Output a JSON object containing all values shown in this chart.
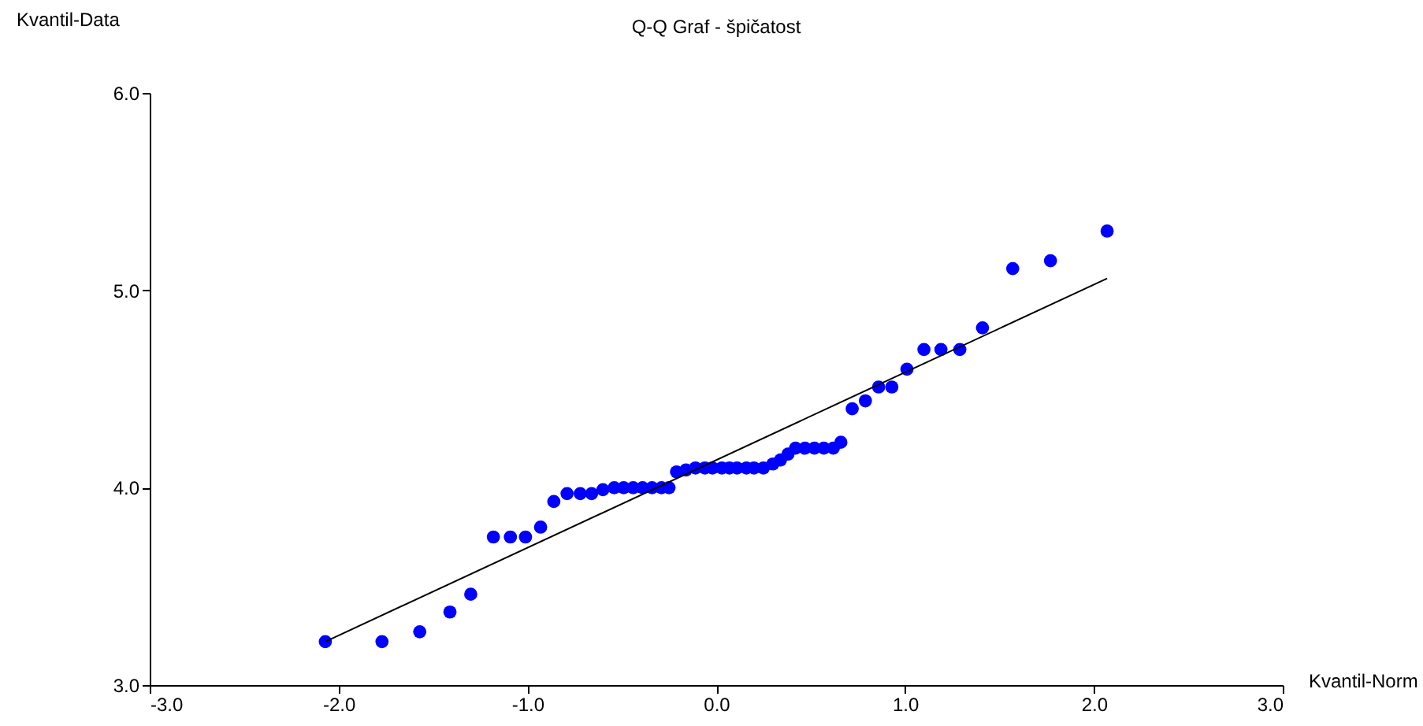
{
  "chart_data": {
    "type": "scatter",
    "title": "Q-Q Graf - špičatost",
    "xlabel": "Kvantil-Norm",
    "ylabel": "Kvantil-Data",
    "xlim": [
      -3,
      3
    ],
    "ylim": [
      3,
      6
    ],
    "xticks": [
      {
        "value": -3,
        "label": "-3.0"
      },
      {
        "value": -2,
        "label": "-2.0"
      },
      {
        "value": -1,
        "label": "-1.0"
      },
      {
        "value": 0,
        "label": "0.0"
      },
      {
        "value": 1,
        "label": "1.0"
      },
      {
        "value": 2,
        "label": "2.0"
      },
      {
        "value": 3,
        "label": "3.0"
      }
    ],
    "yticks": [
      {
        "value": 3,
        "label": "3.0"
      },
      {
        "value": 4,
        "label": "4.0"
      },
      {
        "value": 5,
        "label": "5.0"
      },
      {
        "value": 6,
        "label": "6.0"
      }
    ],
    "grid": false,
    "series": [
      {
        "marker": "circle",
        "color": "#0000ff",
        "x": [
          -2.07,
          -1.77,
          -1.57,
          -1.41,
          -1.3,
          -1.18,
          -1.09,
          -1.01,
          -0.93,
          -0.86,
          -0.79,
          -0.72,
          -0.66,
          -0.6,
          -0.54,
          -0.49,
          -0.44,
          -0.39,
          -0.34,
          -0.29,
          -0.25,
          -0.21,
          -0.16,
          -0.11,
          -0.06,
          -0.02,
          0.03,
          0.07,
          0.11,
          0.16,
          0.2,
          0.25,
          0.3,
          0.34,
          0.38,
          0.42,
          0.47,
          0.52,
          0.57,
          0.62,
          0.66,
          0.72,
          0.79,
          0.86,
          0.93,
          1.01,
          1.1,
          1.19,
          1.29,
          1.41,
          1.57,
          1.77,
          2.07
        ],
        "values": [
          3.22,
          3.22,
          3.27,
          3.37,
          3.46,
          3.75,
          3.75,
          3.75,
          3.8,
          3.93,
          3.97,
          3.97,
          3.97,
          3.99,
          4.0,
          4.0,
          4.0,
          4.0,
          4.0,
          4.0,
          4.0,
          4.08,
          4.09,
          4.1,
          4.1,
          4.1,
          4.1,
          4.1,
          4.1,
          4.1,
          4.1,
          4.1,
          4.12,
          4.14,
          4.17,
          4.2,
          4.2,
          4.2,
          4.2,
          4.2,
          4.23,
          4.4,
          4.44,
          4.51,
          4.51,
          4.6,
          4.7,
          4.7,
          4.7,
          4.81,
          5.11,
          5.15,
          5.3
        ]
      },
      {
        "type": "line",
        "marker": "none",
        "color": "#000000",
        "x": [
          -2.07,
          2.07
        ],
        "values": [
          3.22,
          5.06
        ]
      }
    ]
  }
}
